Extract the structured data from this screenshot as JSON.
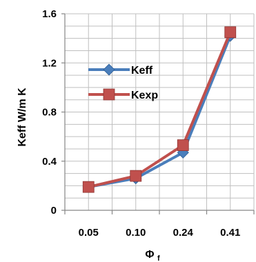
{
  "chart_data": {
    "type": "line",
    "categories": [
      "0.05",
      "0.10",
      "0.24",
      "0.41"
    ],
    "series": [
      {
        "name": "Keff",
        "values": [
          0.19,
          0.26,
          0.47,
          1.42
        ],
        "color": "#4a7ebb",
        "marker": "diamond"
      },
      {
        "name": "Kexp",
        "values": [
          0.19,
          0.28,
          0.53,
          1.45
        ],
        "color": "#c0504d",
        "marker": "square"
      }
    ],
    "ylabel": "Keff W/m K",
    "xlabel": "Φf",
    "ylim": [
      0,
      1.6
    ],
    "yticks": [
      "0",
      "0.4",
      "0.8",
      "1.2",
      "1.6"
    ],
    "grid": true,
    "legend": "upper-left-inside"
  }
}
